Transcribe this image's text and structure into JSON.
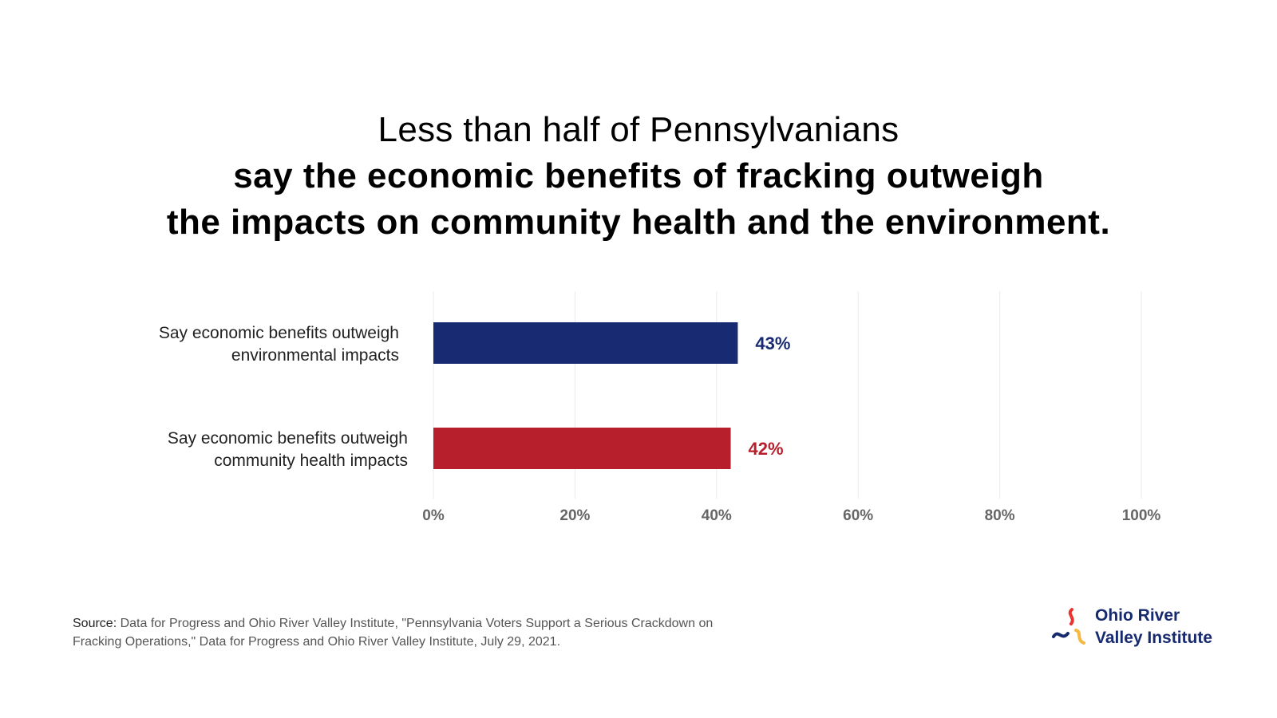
{
  "title": {
    "line1": "Less than half of Pennsylvanians",
    "line2": "say the economic benefits of fracking outweigh",
    "line3": "the impacts on community health and the environment."
  },
  "chart_data": {
    "type": "bar",
    "orientation": "horizontal",
    "categories": [
      [
        "Say economic benefits outweigh",
        "environmental impacts"
      ],
      [
        "Say economic benefits outweigh",
        "community health impacts"
      ]
    ],
    "values": [
      43,
      42
    ],
    "value_labels": [
      "43%",
      "42%"
    ],
    "colors": [
      "#172a72",
      "#b81f2d"
    ],
    "xlim": [
      0,
      100
    ],
    "xticks": [
      0,
      20,
      40,
      60,
      80,
      100
    ],
    "xtick_labels": [
      "0%",
      "20%",
      "40%",
      "60%",
      "80%",
      "100%"
    ],
    "grid": "vertical"
  },
  "source": {
    "prefix": "Source:",
    "text": "Data for Progress and Ohio River Valley Institute, \"Pennsylvania Voters Support a Serious Crackdown on Fracking Operations,\" Data for Progress and Ohio River Valley Institute, July 29, 2021."
  },
  "logo": {
    "line1": "Ohio River",
    "line2": "Valley Institute",
    "colors": {
      "red": "#e8352f",
      "blue": "#172a6e",
      "yellow": "#f5b942"
    }
  }
}
